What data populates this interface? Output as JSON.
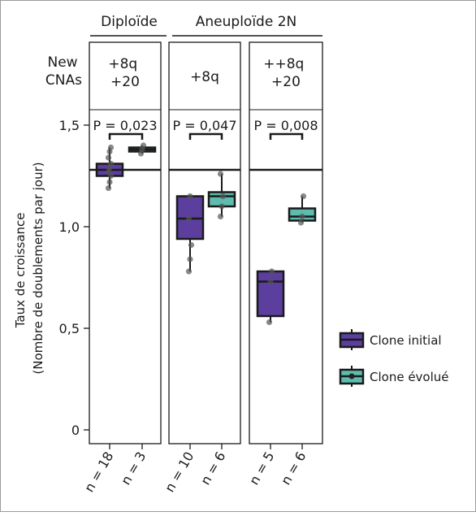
{
  "groups": [
    {
      "label": "Diploïde"
    },
    {
      "label": "Aneuploïde 2N"
    }
  ],
  "new_cnas_label": [
    "New",
    "CNAs"
  ],
  "panels": [
    {
      "cna": [
        "+8q",
        "+20"
      ],
      "pvalue": "P = 0,023",
      "n": [
        "n = 18",
        "n = 3"
      ]
    },
    {
      "cna": [
        "+8q"
      ],
      "pvalue": "P = 0,047",
      "n": [
        "n = 10",
        "n = 6"
      ]
    },
    {
      "cna": [
        "++8q",
        "+20"
      ],
      "pvalue": "P = 0,008",
      "n": [
        "n = 5",
        "n = 6"
      ]
    }
  ],
  "y_axis": {
    "label_line1": "Taux de croissance",
    "label_line2": "(Nombre de doublements par jour)",
    "ticks": [
      "0",
      "0,5",
      "1,0",
      "1,5"
    ]
  },
  "legend": [
    {
      "label": "Clone initial",
      "color": "#5b3e9e"
    },
    {
      "label": "Clone évolué",
      "color": "#5dbcae"
    }
  ],
  "chart_data": {
    "type": "box",
    "ylim": [
      0,
      1.5
    ],
    "reference_line": 1.28,
    "panels": [
      {
        "initial": {
          "q1": 1.25,
          "median": 1.28,
          "q3": 1.31,
          "whisker_low": 1.19,
          "whisker_high": 1.39,
          "points": [
            1.19,
            1.22,
            1.25,
            1.27,
            1.29,
            1.31,
            1.34,
            1.37,
            1.39
          ]
        },
        "evolved": {
          "q1": 1.37,
          "median": 1.38,
          "q3": 1.39,
          "whisker_low": 1.36,
          "whisker_high": 1.4,
          "points": [
            1.36,
            1.38,
            1.4
          ]
        }
      },
      {
        "initial": {
          "q1": 0.94,
          "median": 1.04,
          "q3": 1.15,
          "whisker_low": 0.78,
          "whisker_high": 1.15,
          "points": [
            0.78,
            0.84,
            0.91,
            1.04,
            1.15
          ]
        },
        "evolved": {
          "q1": 1.1,
          "median": 1.15,
          "q3": 1.17,
          "whisker_low": 1.05,
          "whisker_high": 1.26,
          "points": [
            1.05,
            1.1,
            1.15,
            1.26
          ]
        }
      },
      {
        "initial": {
          "q1": 0.56,
          "median": 0.73,
          "q3": 0.78,
          "whisker_low": 0.53,
          "whisker_high": 0.78,
          "points": [
            0.53,
            0.73,
            0.78
          ]
        },
        "evolved": {
          "q1": 1.03,
          "median": 1.05,
          "q3": 1.09,
          "whisker_low": 1.02,
          "whisker_high": 1.15,
          "points": [
            1.02,
            1.05,
            1.15
          ]
        }
      }
    ]
  }
}
